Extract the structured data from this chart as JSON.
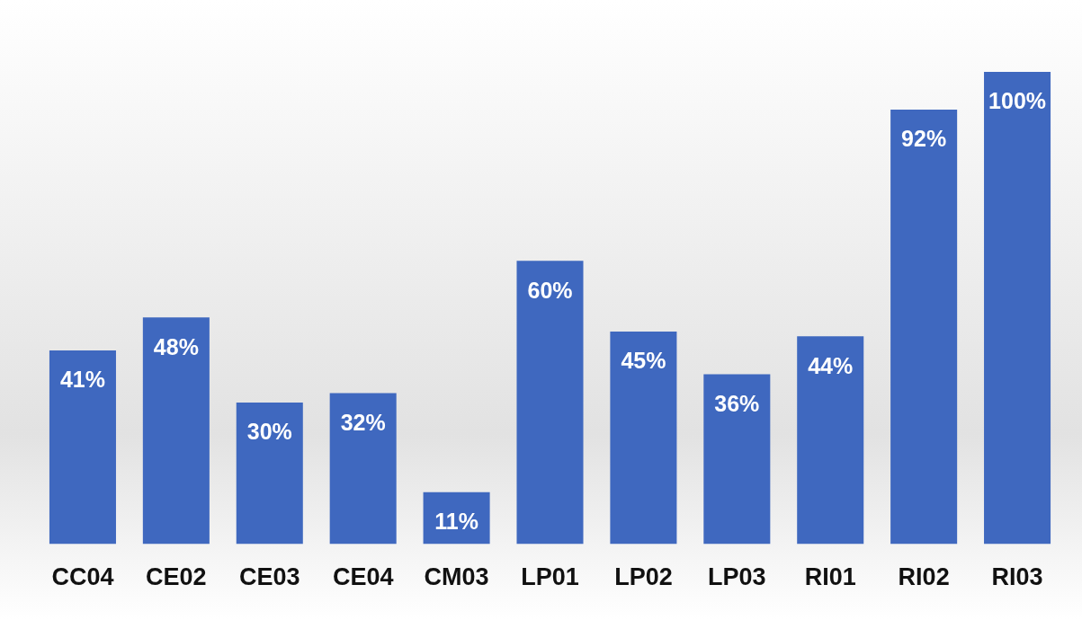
{
  "chart_data": {
    "type": "bar",
    "categories": [
      "CC04",
      "CE02",
      "CE03",
      "CE04",
      "CM03",
      "LP01",
      "LP02",
      "LP03",
      "RI01",
      "RI02",
      "RI03"
    ],
    "values": [
      41,
      48,
      30,
      32,
      11,
      60,
      45,
      36,
      44,
      92,
      100
    ],
    "value_labels": [
      "41%",
      "48%",
      "30%",
      "32%",
      "11%",
      "60%",
      "45%",
      "36%",
      "44%",
      "92%",
      "100%"
    ],
    "color": "#3f68bf",
    "grid": false
  }
}
